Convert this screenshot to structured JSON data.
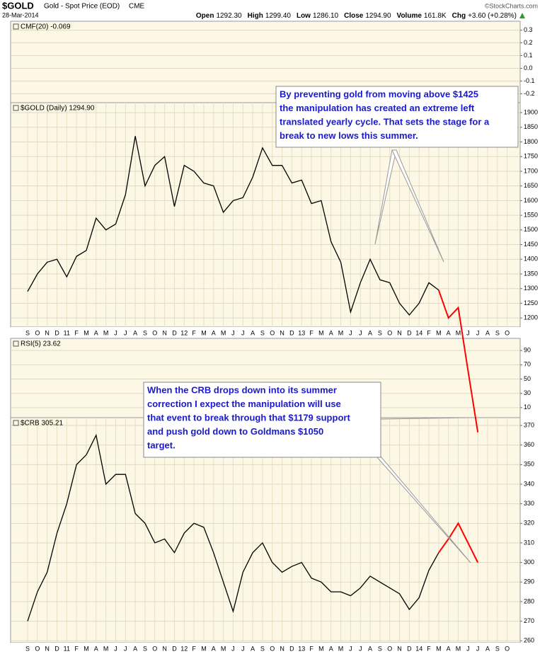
{
  "header": {
    "title": "$GOLD",
    "subtitle": "Gold - Spot Price (EOD)",
    "exchange": "CME",
    "date": "28-Mar-2014",
    "credit": "©StockCharts.com",
    "quote": [
      {
        "label": "Open",
        "value": "1292.30"
      },
      {
        "label": "High",
        "value": "1299.40"
      },
      {
        "label": "Low",
        "value": "1286.10"
      },
      {
        "label": "Close",
        "value": "1294.90"
      },
      {
        "label": "Volume",
        "value": "161.8K"
      },
      {
        "label": "Chg",
        "value": "+3.60 (+0.28%)"
      }
    ]
  },
  "annotations": [
    {
      "lines": [
        "By preventing gold from moving above $1425",
        "the manipulation has created an extreme left",
        "translated yearly cycle. That sets the stage for a",
        "break to new lows this summer."
      ]
    },
    {
      "lines": [
        "When the CRB drops down into its summer",
        "correction I expect the manipulation will use",
        "that event to break through that $1179 support",
        "and push gold down to Goldmans $1050",
        "target."
      ]
    }
  ],
  "chart_data": [
    {
      "type": "line",
      "title": "CMF(20) -0.069",
      "ylim": [
        -0.27,
        0.37
      ],
      "grid": true,
      "yticks": [
        0.3,
        0.2,
        0.1,
        {
          "value": 0,
          "label": "0.0"
        },
        -0.1,
        -0.2
      ]
    },
    {
      "type": "line",
      "title": "$GOLD (Daily) 1294.90",
      "ylim": [
        1169,
        1934
      ],
      "grid": true,
      "color": "#000000",
      "yticks": [
        1200,
        1250,
        1300,
        1350,
        1400,
        1450,
        1500,
        1550,
        1600,
        1650,
        1700,
        1750,
        1800,
        1850,
        1900
      ],
      "categories": [
        "S",
        "O",
        "N",
        "D",
        "11",
        "F",
        "M",
        "A",
        "M",
        "J",
        "J",
        "A",
        "S",
        "O",
        "N",
        "D",
        "12",
        "F",
        "M",
        "A",
        "M",
        "J",
        "J",
        "A",
        "S",
        "O",
        "N",
        "D",
        "13",
        "F",
        "M",
        "A",
        "M",
        "J",
        "J",
        "A",
        "S",
        "O",
        "N",
        "D",
        "14",
        "F",
        "M",
        "A",
        "M",
        "J",
        "J",
        "A",
        "S",
        "O"
      ],
      "values": [
        1290,
        1350,
        1390,
        1400,
        1340,
        1410,
        1430,
        1540,
        1500,
        1520,
        1620,
        1820,
        1650,
        1720,
        1750,
        1580,
        1720,
        1700,
        1660,
        1650,
        1560,
        1600,
        1610,
        1680,
        1780,
        1720,
        1720,
        1660,
        1670,
        1590,
        1600,
        1460,
        1390,
        1220,
        1320,
        1400,
        1330,
        1320,
        1250,
        1210,
        1250,
        1320,
        1295,
        null,
        null,
        null,
        null,
        null,
        null,
        null
      ],
      "projection": {
        "color": "#ff0000",
        "values": [
          null,
          null,
          null,
          null,
          null,
          null,
          null,
          null,
          null,
          null,
          null,
          null,
          null,
          null,
          null,
          null,
          null,
          null,
          null,
          null,
          null,
          null,
          null,
          null,
          null,
          null,
          null,
          null,
          null,
          null,
          null,
          null,
          null,
          null,
          null,
          null,
          null,
          null,
          null,
          null,
          null,
          null,
          1295,
          1200,
          1235,
          1020,
          810,
          null,
          null,
          null
        ]
      }
    },
    {
      "type": "line",
      "title": "RSI(5) 23.62",
      "ylim": [
        -4,
        107
      ],
      "grid": true,
      "yticks": [
        90,
        70,
        50,
        30,
        10
      ]
    },
    {
      "type": "line",
      "title": "$CRB 305.21",
      "ylim": [
        259,
        374
      ],
      "grid": true,
      "color": "#000000",
      "yticks": [
        370,
        360,
        350,
        340,
        330,
        320,
        310,
        300,
        290,
        280,
        270,
        260
      ],
      "categories": [
        "S",
        "O",
        "N",
        "D",
        "11",
        "F",
        "M",
        "A",
        "M",
        "J",
        "J",
        "A",
        "S",
        "O",
        "N",
        "D",
        "12",
        "F",
        "M",
        "A",
        "M",
        "J",
        "J",
        "A",
        "S",
        "O",
        "N",
        "D",
        "13",
        "F",
        "M",
        "A",
        "M",
        "J",
        "J",
        "A",
        "S",
        "O",
        "N",
        "D",
        "14",
        "F",
        "M",
        "A",
        "M",
        "J",
        "J",
        "A",
        "S",
        "O"
      ],
      "values": [
        270,
        285,
        295,
        315,
        330,
        350,
        355,
        365,
        340,
        345,
        345,
        325,
        320,
        310,
        312,
        305,
        315,
        320,
        318,
        305,
        290,
        275,
        295,
        305,
        310,
        300,
        295,
        298,
        300,
        292,
        290,
        285,
        285,
        283,
        287,
        293,
        290,
        287,
        284,
        276,
        282,
        296,
        305,
        null,
        null,
        null,
        null,
        null,
        null,
        null
      ],
      "projection": {
        "color": "#ff0000",
        "values": [
          null,
          null,
          null,
          null,
          null,
          null,
          null,
          null,
          null,
          null,
          null,
          null,
          null,
          null,
          null,
          null,
          null,
          null,
          null,
          null,
          null,
          null,
          null,
          null,
          null,
          null,
          null,
          null,
          null,
          null,
          null,
          null,
          null,
          null,
          null,
          null,
          null,
          null,
          null,
          null,
          null,
          null,
          305,
          312,
          320,
          310,
          300,
          null,
          null,
          null
        ]
      }
    }
  ]
}
